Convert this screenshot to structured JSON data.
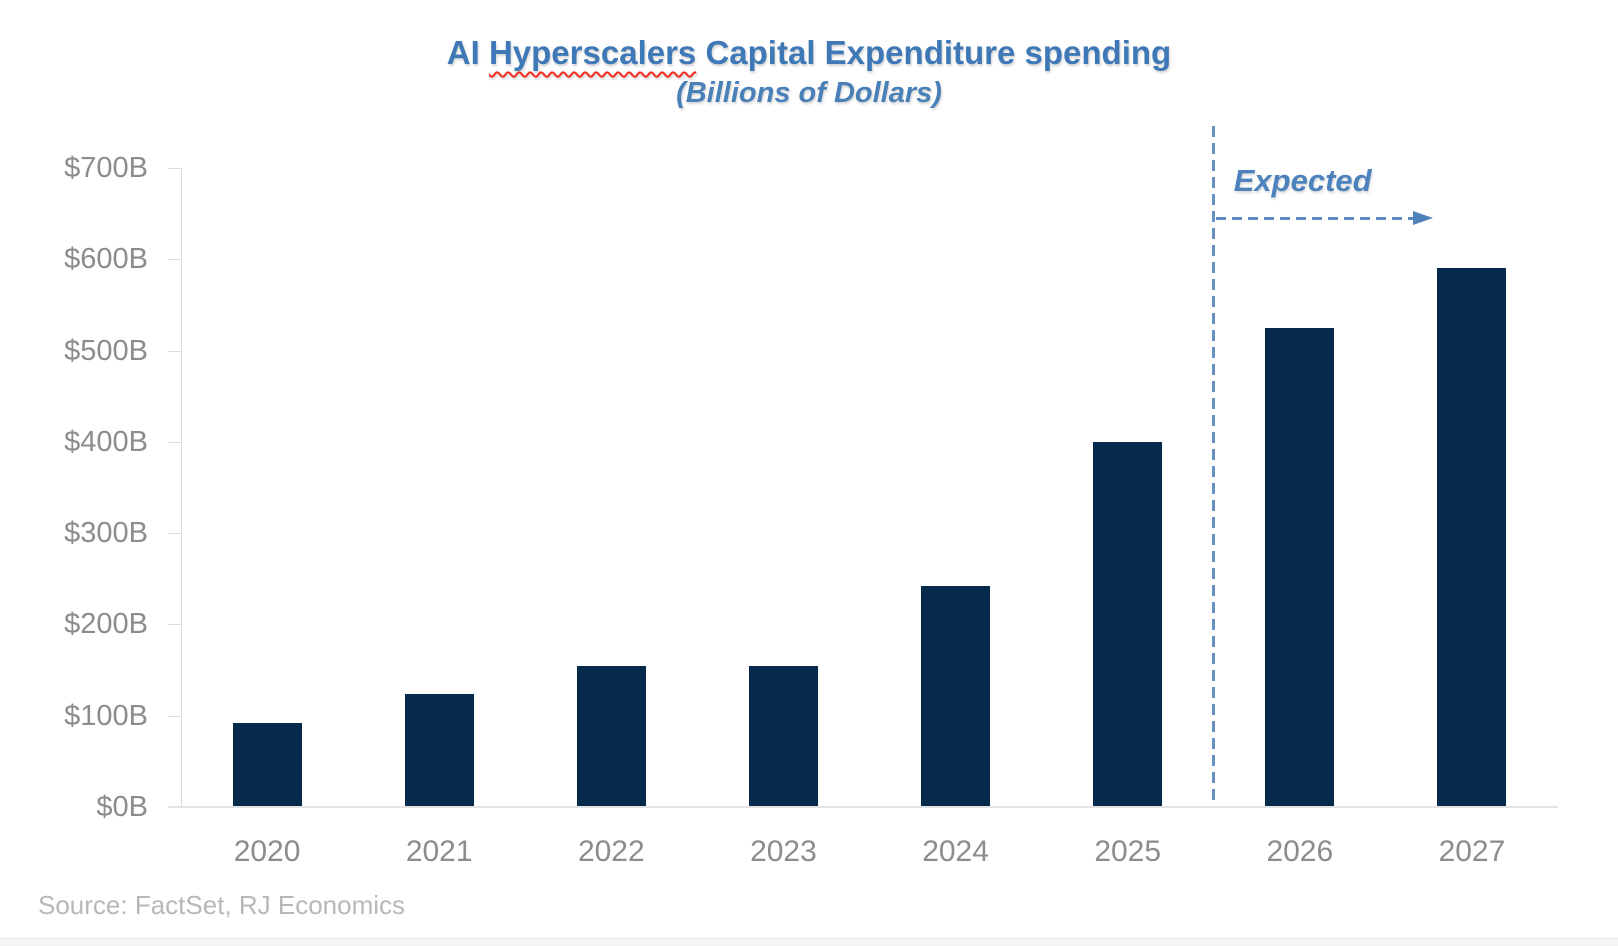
{
  "title": {
    "pre": "AI ",
    "misspelled_word": "Hyperscalers",
    "post": " Capital Expenditure spending",
    "subtitle": "(Billions of Dollars)"
  },
  "annotation": {
    "label": "Expected"
  },
  "source": "Source: FactSet, RJ Economics",
  "colors": {
    "bar": "#062a4c",
    "title_blue": "#3e78b6",
    "annotation_blue": "#4d82bc",
    "axis_gray": "#dcdcdc",
    "label_gray": "#8c8c89",
    "source_gray": "#b8b8b5",
    "spellcheck_red": "#f22d1e"
  },
  "chart_data": {
    "type": "bar",
    "title": "AI Hyperscalers Capital Expenditure spending",
    "subtitle": "(Billions of Dollars)",
    "categories": [
      "2020",
      "2021",
      "2022",
      "2023",
      "2024",
      "2025",
      "2026",
      "2027"
    ],
    "values": [
      92,
      124,
      154,
      155,
      242,
      400,
      525,
      590
    ],
    "units": "billions of dollars",
    "ylim": [
      0,
      700
    ],
    "ytick_step": 100,
    "ytick_labels": [
      "$0B",
      "$100B",
      "$200B",
      "$300B",
      "$400B",
      "$500B",
      "$600B",
      "$700B"
    ],
    "xlabel": "",
    "ylabel": "",
    "grid": false,
    "legend": false,
    "annotation": "Expected",
    "expected_from_category": "2026",
    "source": "Source: FactSet, RJ Economics"
  }
}
